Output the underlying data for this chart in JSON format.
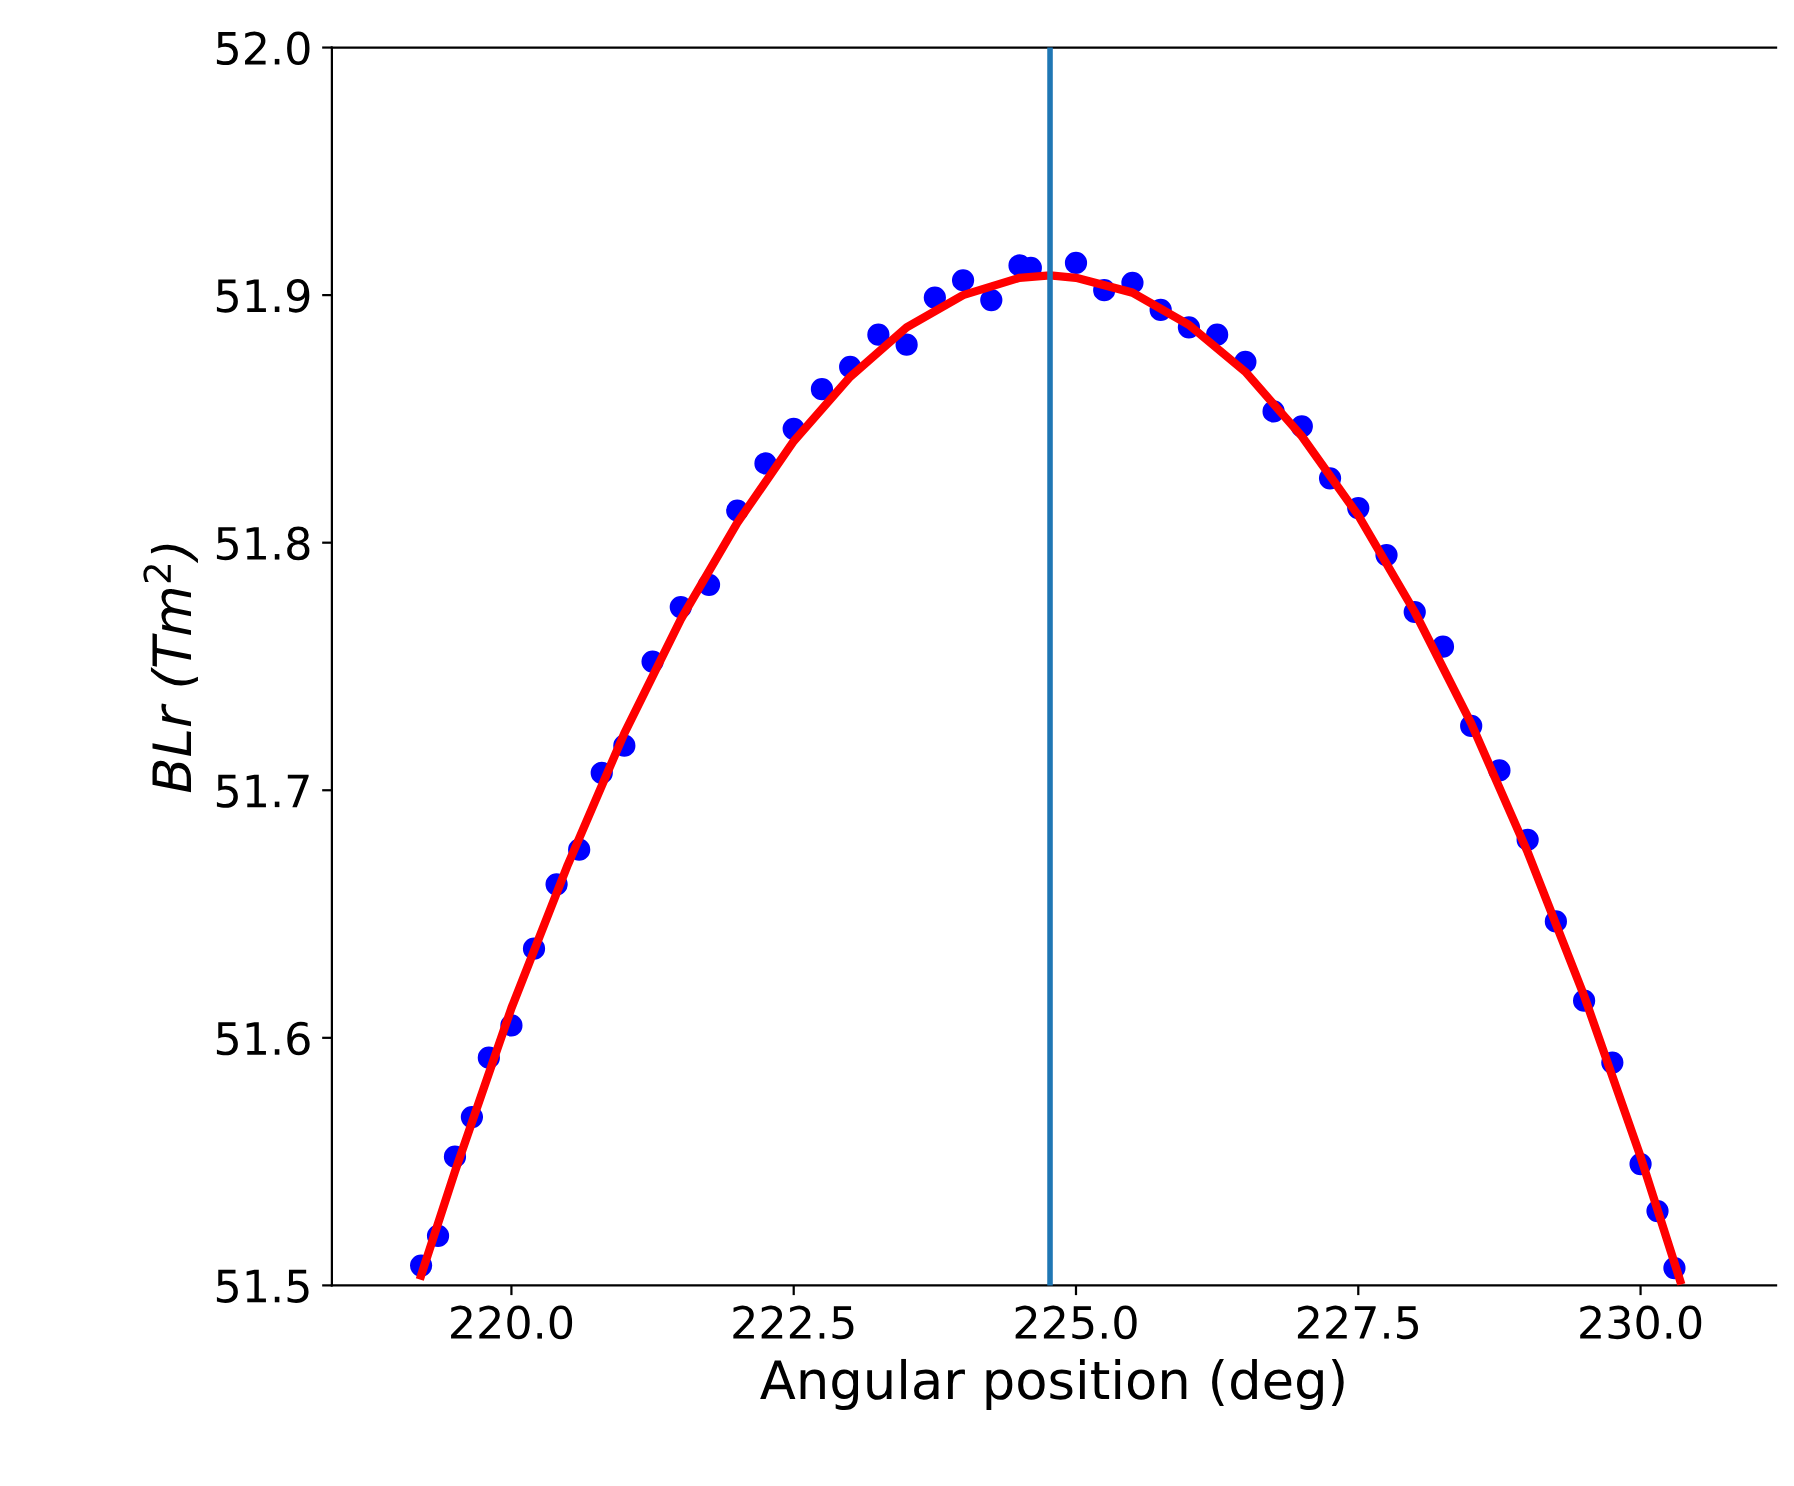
{
  "chart_data": {
    "type": "scatter",
    "xlabel": "Angular position (deg)",
    "ylabel": "BLr (Tm$^{2}$)",
    "xlim": [
      218.41,
      231.2
    ],
    "xticks": [
      {
        "value": 220,
        "label": "220.0"
      },
      {
        "value": 222.5,
        "label": "222.5"
      },
      {
        "value": 225,
        "label": "225.0"
      },
      {
        "value": 227.5,
        "label": "227.5"
      },
      {
        "value": 230,
        "label": "230.0"
      }
    ],
    "ylim": [
      51.5,
      52.0
    ],
    "yticks": [
      {
        "value": 51.5,
        "label": "51.5"
      },
      {
        "value": 51.6,
        "label": "51.6"
      },
      {
        "value": 51.7,
        "label": "51.7"
      },
      {
        "value": 51.8,
        "label": "51.8"
      },
      {
        "value": 51.9,
        "label": "51.9"
      },
      {
        "value": 52.0,
        "label": "52.0"
      }
    ],
    "grid": false,
    "legend": false,
    "marker": "circle",
    "ref_lines": [
      {
        "axis": "x",
        "value": 224.77,
        "color": "#1f77b4"
      }
    ],
    "series": [
      {
        "color": "#0000ff",
        "x": [
          219.2,
          219.35,
          219.5,
          219.65,
          219.8,
          220.0,
          220.2,
          220.4,
          220.6,
          220.8,
          221.0,
          221.25,
          221.5,
          221.75,
          222.0,
          222.25,
          222.5,
          222.75,
          223.0,
          223.25,
          223.5,
          223.75,
          224.0,
          224.25,
          224.5,
          224.6,
          225.0,
          225.25,
          225.5,
          225.75,
          226.0,
          226.25,
          226.5,
          226.75,
          227.0,
          227.25,
          227.5,
          227.75,
          228.0,
          228.25,
          228.5,
          228.75,
          229.0,
          229.25,
          229.5,
          229.75,
          230.0,
          230.15,
          230.3
        ],
        "values": [
          51.508,
          51.52,
          51.552,
          51.568,
          51.592,
          51.605,
          51.636,
          51.662,
          51.676,
          51.707,
          51.718,
          51.752,
          51.774,
          51.783,
          51.813,
          51.832,
          51.846,
          51.862,
          51.871,
          51.884,
          51.88,
          51.899,
          51.906,
          51.898,
          51.912,
          51.911,
          51.913,
          51.902,
          51.905,
          51.894,
          51.887,
          51.884,
          51.873,
          51.853,
          51.847,
          51.826,
          51.814,
          51.795,
          51.772,
          51.758,
          51.726,
          51.708,
          51.68,
          51.647,
          51.615,
          51.59,
          51.549,
          51.53,
          51.507
        ]
      },
      {
        "type": "line",
        "color": "#ff0000",
        "marker": "none",
        "line_style": "solid",
        "x": [
          219.2,
          219.5,
          220.0,
          220.5,
          221.0,
          221.5,
          222.0,
          222.5,
          223.0,
          223.5,
          224.0,
          224.5,
          224.77,
          225.0,
          225.5,
          226.0,
          226.5,
          227.0,
          227.5,
          228.0,
          228.5,
          229.0,
          229.5,
          230.0,
          230.35
        ],
        "values": [
          51.504,
          51.546,
          51.612,
          51.67,
          51.723,
          51.769,
          51.808,
          51.841,
          51.867,
          51.887,
          51.9,
          51.907,
          51.908,
          51.907,
          51.901,
          51.888,
          51.869,
          51.843,
          51.811,
          51.772,
          51.727,
          51.675,
          51.617,
          51.552,
          51.502
        ]
      }
    ]
  }
}
